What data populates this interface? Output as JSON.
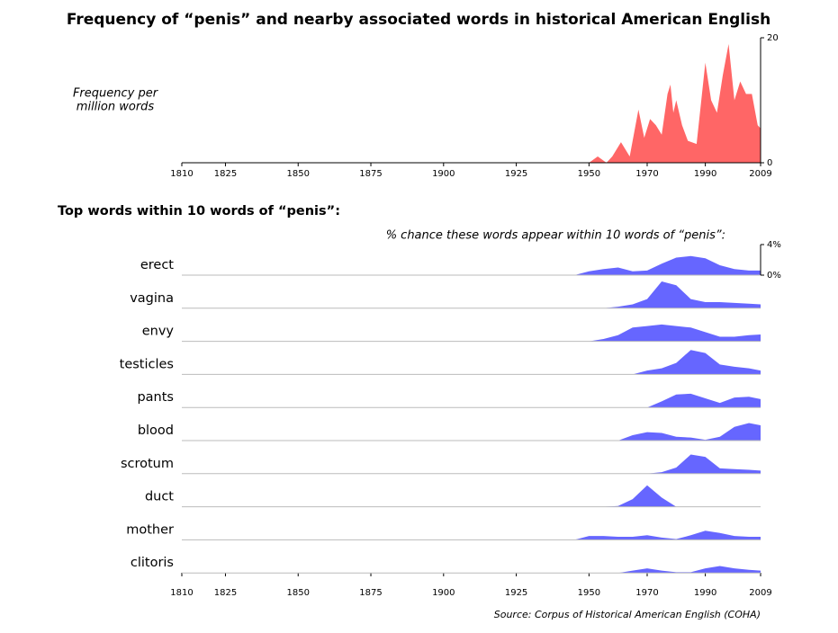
{
  "chart_data": [
    {
      "type": "area",
      "title": "Frequency of “penis” and nearby associated words in historical American English",
      "ylabel": [
        "Frequency per",
        "million words"
      ],
      "color": "#ff6666",
      "x": [
        1810,
        1950,
        1953,
        1956,
        1958,
        1961,
        1964,
        1967,
        1969,
        1971,
        1973,
        1975,
        1977,
        1978,
        1979,
        1980,
        1982,
        1984,
        1987,
        1990,
        1992,
        1994,
        1996,
        1998,
        2000,
        2002,
        2004,
        2006,
        2008,
        2009
      ],
      "values": [
        0,
        0,
        1,
        0,
        1,
        3.3,
        1,
        8.5,
        4,
        7,
        6,
        4.5,
        11,
        12.5,
        8,
        10,
        6,
        3.5,
        3,
        16,
        10,
        8,
        14,
        19,
        10,
        13,
        11,
        11,
        6,
        5.5
      ],
      "xlim": [
        1810,
        2009
      ],
      "xticks": [
        1810,
        1825,
        1850,
        1875,
        1900,
        1925,
        1950,
        1970,
        1990,
        2009
      ],
      "ylim": [
        0,
        20
      ],
      "yticks": [
        0,
        20
      ]
    },
    {
      "type": "area",
      "title": "Top words within 10 words of “penis”:",
      "subtitle": "% chance these words appear within 10 words of “penis”:",
      "source": "Source: Corpus of Historical American English (COHA)",
      "color": "#6666ff",
      "x": [
        1945,
        1950,
        1955,
        1960,
        1965,
        1970,
        1975,
        1980,
        1985,
        1990,
        1995,
        2000,
        2005,
        2009
      ],
      "series": [
        {
          "name": "erect",
          "values": [
            0,
            0.5,
            0.8,
            1,
            0.5,
            0.6,
            1.5,
            2.3,
            2.5,
            2.2,
            1.3,
            0.8,
            0.6,
            0.6
          ]
        },
        {
          "name": "vagina",
          "values": [
            0,
            0,
            0,
            0.2,
            0.5,
            1.2,
            3.5,
            3,
            1.2,
            0.8,
            0.8,
            0.7,
            0.6,
            0.5
          ]
        },
        {
          "name": "envy",
          "values": [
            0,
            0,
            0.3,
            0.8,
            1.8,
            2,
            2.2,
            2,
            1.8,
            1.2,
            0.6,
            0.6,
            0.8,
            0.9
          ]
        },
        {
          "name": "testicles",
          "values": [
            0,
            0,
            0,
            0,
            0,
            0.5,
            0.8,
            1.5,
            3.2,
            2.8,
            1.3,
            1,
            0.8,
            0.5
          ]
        },
        {
          "name": "pants",
          "values": [
            0,
            0,
            0,
            0,
            0,
            0,
            0.8,
            1.7,
            1.8,
            1.2,
            0.6,
            1.3,
            1.4,
            1.1
          ]
        },
        {
          "name": "blood",
          "values": [
            0,
            0,
            0,
            0,
            0.7,
            1.1,
            1,
            0.5,
            0.4,
            0.1,
            0.5,
            1.8,
            2.3,
            2
          ]
        },
        {
          "name": "scrotum",
          "values": [
            0,
            0,
            0,
            0,
            0,
            0,
            0.2,
            0.8,
            2.5,
            2.2,
            0.7,
            0.6,
            0.5,
            0.4
          ]
        },
        {
          "name": "duct",
          "values": [
            0,
            0,
            0,
            0.1,
            1,
            2.8,
            1.2,
            0,
            0,
            0,
            0,
            0,
            0,
            0
          ]
        },
        {
          "name": "mother",
          "values": [
            0,
            0.5,
            0.5,
            0.4,
            0.4,
            0.6,
            0.3,
            0.1,
            0.6,
            1.2,
            0.9,
            0.5,
            0.4,
            0.4
          ]
        },
        {
          "name": "clitoris",
          "values": [
            0,
            0,
            0,
            0,
            0.3,
            0.6,
            0.3,
            0.1,
            0.1,
            0.6,
            0.9,
            0.6,
            0.4,
            0.3
          ]
        }
      ],
      "xlim": [
        1810,
        2009
      ],
      "xticks": [
        1810,
        1825,
        1850,
        1875,
        1900,
        1925,
        1950,
        1970,
        1990,
        2009
      ],
      "ylim": [
        0,
        4
      ],
      "yticks": [
        {
          "value": 0,
          "label": "0%"
        },
        {
          "value": 4,
          "label": "4%"
        }
      ]
    }
  ]
}
